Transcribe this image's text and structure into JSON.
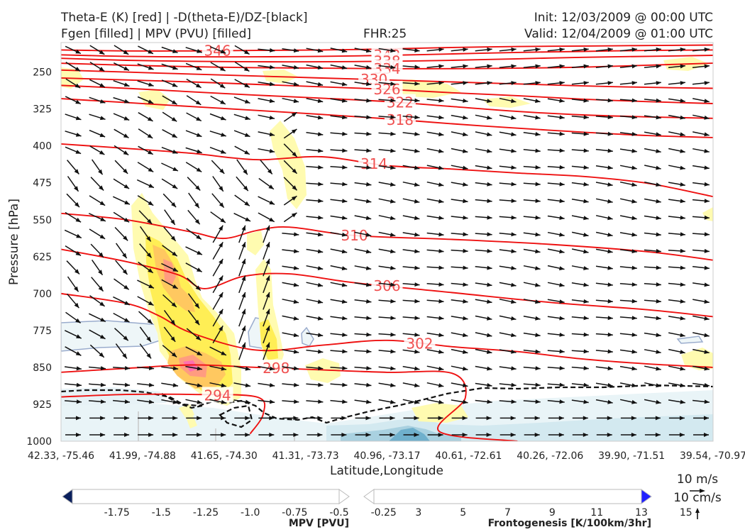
{
  "header": {
    "line1_left": "Theta-E (K) [red] | -D(theta-E)/DZ-[black]",
    "line2_left": "Fgen [filled] | MPV (PVU) [filled]",
    "fhr": "FHR:25",
    "init": "Init: 12/03/2009 @ 00:00 UTC",
    "valid": "Valid: 12/04/2009 @ 01:00 UTC"
  },
  "chart_data": {
    "type": "contour",
    "ylabel": "Pressure [hPa]",
    "xlabel": "Latitude,Longitude",
    "y_ticks": [
      250,
      325,
      400,
      475,
      550,
      625,
      700,
      775,
      850,
      925,
      1000
    ],
    "ylim": [
      1000,
      190
    ],
    "x_ticks": [
      "42.33, -75.46",
      "41.99, -74.88",
      "41.65, -74.30",
      "41.31, -73.73",
      "40.96, -73.17",
      "40.61, -72.61",
      "40.26, -72.06",
      "39.90, -71.51",
      "39.54, -70.97"
    ],
    "theta_e_contours": [
      {
        "label": "346",
        "points": [
          [
            0.0,
            205
          ],
          [
            0.1,
            207
          ],
          [
            0.2,
            207
          ],
          [
            0.3,
            206
          ],
          [
            0.4,
            205
          ],
          [
            0.5,
            203
          ],
          [
            0.6,
            200
          ],
          [
            0.7,
            198
          ],
          [
            0.8,
            197
          ],
          [
            0.9,
            196
          ],
          [
            1.0,
            195
          ]
        ]
      },
      {
        "label": "342",
        "points": [
          [
            0.0,
            215
          ],
          [
            0.1,
            218
          ],
          [
            0.2,
            219
          ],
          [
            0.3,
            219
          ],
          [
            0.4,
            218
          ],
          [
            0.5,
            216
          ],
          [
            0.6,
            213
          ],
          [
            0.7,
            210
          ],
          [
            0.8,
            208
          ],
          [
            0.9,
            206
          ],
          [
            1.0,
            205
          ]
        ]
      },
      {
        "label": "338",
        "points": [
          [
            0.0,
            222
          ],
          [
            0.1,
            226
          ],
          [
            0.2,
            228
          ],
          [
            0.3,
            229
          ],
          [
            0.4,
            229
          ],
          [
            0.5,
            228
          ],
          [
            0.6,
            226
          ],
          [
            0.7,
            223
          ],
          [
            0.8,
            220
          ],
          [
            0.9,
            218
          ],
          [
            1.0,
            216
          ]
        ]
      },
      {
        "label": "334",
        "points": [
          [
            0.0,
            232
          ],
          [
            0.1,
            236
          ],
          [
            0.2,
            239
          ],
          [
            0.3,
            241
          ],
          [
            0.4,
            242
          ],
          [
            0.5,
            243
          ],
          [
            0.6,
            243
          ],
          [
            0.7,
            242
          ],
          [
            0.8,
            240
          ],
          [
            0.9,
            236
          ],
          [
            1.0,
            232
          ]
        ]
      },
      {
        "label": "330",
        "points": [
          [
            0.0,
            246
          ],
          [
            0.1,
            250
          ],
          [
            0.2,
            254
          ],
          [
            0.3,
            258
          ],
          [
            0.4,
            262
          ],
          [
            0.5,
            266
          ],
          [
            0.6,
            270
          ],
          [
            0.7,
            274
          ],
          [
            0.8,
            278
          ],
          [
            0.9,
            281
          ],
          [
            1.0,
            283
          ]
        ]
      },
      {
        "label": "326",
        "points": [
          [
            0.0,
            262
          ],
          [
            0.1,
            266
          ],
          [
            0.2,
            270
          ],
          [
            0.3,
            275
          ],
          [
            0.4,
            280
          ],
          [
            0.5,
            285
          ],
          [
            0.6,
            292
          ],
          [
            0.7,
            298
          ],
          [
            0.8,
            305
          ],
          [
            0.9,
            310
          ],
          [
            1.0,
            314
          ]
        ]
      },
      {
        "label": "322",
        "points": [
          [
            0.0,
            277
          ],
          [
            0.1,
            283
          ],
          [
            0.2,
            290
          ],
          [
            0.3,
            297
          ],
          [
            0.4,
            303
          ],
          [
            0.5,
            310
          ],
          [
            0.6,
            320
          ],
          [
            0.7,
            330
          ],
          [
            0.8,
            337
          ],
          [
            0.9,
            341
          ],
          [
            1.0,
            344
          ]
        ]
      },
      {
        "label": "318",
        "points": [
          [
            0.0,
            304
          ],
          [
            0.1,
            312
          ],
          [
            0.2,
            320
          ],
          [
            0.3,
            328
          ],
          [
            0.4,
            336
          ],
          [
            0.5,
            345
          ],
          [
            0.6,
            355
          ],
          [
            0.7,
            364
          ],
          [
            0.8,
            372
          ],
          [
            0.9,
            379
          ],
          [
            1.0,
            383
          ]
        ]
      },
      {
        "label": "314",
        "points": [
          [
            0.0,
            396
          ],
          [
            0.1,
            405
          ],
          [
            0.2,
            415
          ],
          [
            0.3,
            428
          ],
          [
            0.4,
            422
          ],
          [
            0.5,
            440
          ],
          [
            0.6,
            447
          ],
          [
            0.7,
            455
          ],
          [
            0.8,
            462
          ],
          [
            0.9,
            476
          ],
          [
            1.0,
            503
          ]
        ]
      },
      {
        "label": "310",
        "points": [
          [
            0.0,
            537
          ],
          [
            0.1,
            550
          ],
          [
            0.2,
            575
          ],
          [
            0.25,
            588
          ],
          [
            0.3,
            572
          ],
          [
            0.35,
            565
          ],
          [
            0.45,
            582
          ],
          [
            0.6,
            590
          ],
          [
            0.75,
            600
          ],
          [
            0.9,
            615
          ],
          [
            1.0,
            632
          ]
        ]
      },
      {
        "label": "306",
        "points": [
          [
            0.0,
            610
          ],
          [
            0.1,
            635
          ],
          [
            0.18,
            662
          ],
          [
            0.22,
            690
          ],
          [
            0.28,
            665
          ],
          [
            0.35,
            660
          ],
          [
            0.45,
            678
          ],
          [
            0.6,
            698
          ],
          [
            0.75,
            718
          ],
          [
            0.9,
            733
          ],
          [
            1.0,
            747
          ]
        ]
      },
      {
        "label": "302",
        "points": [
          [
            0.0,
            700
          ],
          [
            0.1,
            720
          ],
          [
            0.15,
            745
          ],
          [
            0.2,
            780
          ],
          [
            0.3,
            815
          ],
          [
            0.4,
            805
          ],
          [
            0.5,
            795
          ],
          [
            0.6,
            808
          ],
          [
            0.7,
            818
          ],
          [
            0.8,
            833
          ],
          [
            0.9,
            843
          ],
          [
            1.0,
            850
          ]
        ]
      },
      {
        "label": "298",
        "points": [
          [
            0.0,
            860
          ],
          [
            0.1,
            852
          ],
          [
            0.2,
            845
          ],
          [
            0.3,
            850
          ],
          [
            0.4,
            855
          ],
          [
            0.5,
            860
          ],
          [
            0.6,
            862
          ],
          [
            0.62,
            912
          ],
          [
            0.58,
            980
          ],
          [
            0.7,
            1000
          ]
        ]
      },
      {
        "label": "294",
        "points": [
          [
            0.0,
            910
          ],
          [
            0.1,
            905
          ],
          [
            0.2,
            905
          ],
          [
            0.3,
            910
          ],
          [
            0.31,
            945
          ],
          [
            0.29,
            985
          ]
        ]
      }
    ],
    "mpv_colorbar": {
      "title": "MPV [PVU]",
      "ticks": [
        "-1.75",
        "-1.5",
        "-1.25",
        "-1.0",
        "-0.75",
        "-0.5",
        "-0.25"
      ],
      "colors": [
        "#0a1f5c",
        "#0e3c7a",
        "#115d90",
        "#1b7aa3",
        "#4b9fc0",
        "#85bfd5",
        "#bcdbe6",
        "#ffffff"
      ]
    },
    "fgen_colorbar": {
      "title": "Frontogenesis [K/100km/3hr]",
      "ticks": [
        "3",
        "5",
        "7",
        "9",
        "11",
        "13",
        "15"
      ],
      "colors": [
        "#ffffff",
        "#ffee00",
        "#ffc040",
        "#ff8c70",
        "#ff55a8",
        "#c030d8",
        "#7a1cf0",
        "#2020ff"
      ]
    },
    "wind_reference": {
      "u_label": "10 m/s",
      "w_label": "10 cm/s"
    },
    "grid": false
  }
}
